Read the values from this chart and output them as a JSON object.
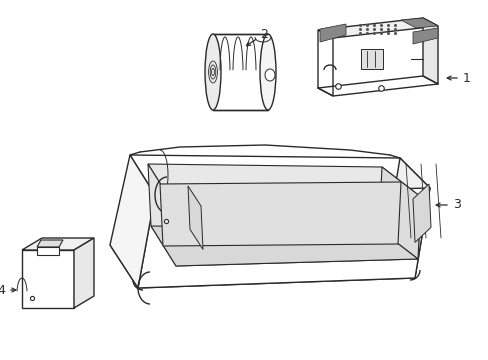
{
  "background_color": "#ffffff",
  "line_color": "#2a2a2a",
  "line_width": 1.0,
  "label_fontsize": 9,
  "fig_width": 4.89,
  "fig_height": 3.6,
  "dpi": 100
}
